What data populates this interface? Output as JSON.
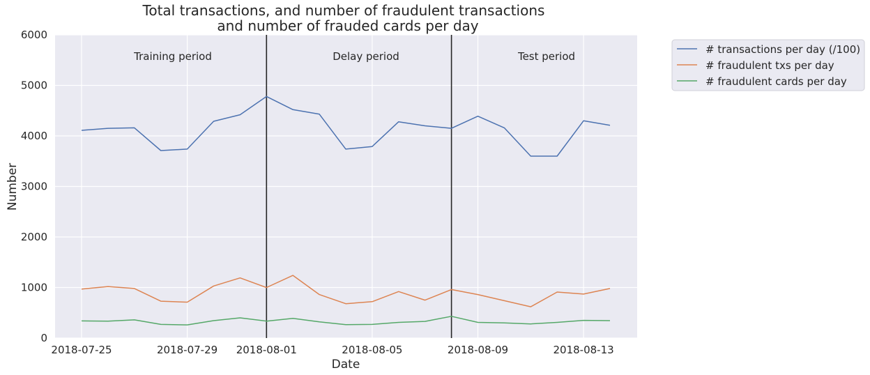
{
  "chart_data": {
    "type": "line",
    "title_line1": "Total transactions, and number of fraudulent transactions",
    "title_line2": "and number of frauded cards per day",
    "xlabel": "Date",
    "ylabel": "Number",
    "ylim": [
      0,
      6000
    ],
    "yticks": [
      "0",
      "1000",
      "2000",
      "3000",
      "4000",
      "5000",
      "6000"
    ],
    "xtick_labels": [
      "2018-07-25",
      "2018-07-29",
      "2018-08-01",
      "2018-08-05",
      "2018-08-09",
      "2018-08-13"
    ],
    "xtick_positions": [
      0,
      4,
      7,
      11,
      15,
      19
    ],
    "x": [
      "2018-07-25",
      "2018-07-26",
      "2018-07-27",
      "2018-07-28",
      "2018-07-29",
      "2018-07-30",
      "2018-07-31",
      "2018-08-01",
      "2018-08-02",
      "2018-08-03",
      "2018-08-04",
      "2018-08-05",
      "2018-08-06",
      "2018-08-07",
      "2018-08-08",
      "2018-08-09",
      "2018-08-10",
      "2018-08-11",
      "2018-08-12",
      "2018-08-13",
      "2018-08-14"
    ],
    "series": [
      {
        "name": "# transactions per day (/100)",
        "color": "#4c72b0",
        "values": [
          4110,
          4150,
          4160,
          3710,
          3740,
          4290,
          4420,
          4780,
          4520,
          4430,
          3740,
          3790,
          4280,
          4200,
          4150,
          4390,
          4160,
          3600,
          3600,
          4300,
          4210
        ]
      },
      {
        "name": "# fraudulent txs per day",
        "color": "#dd8452",
        "values": [
          970,
          1020,
          980,
          730,
          710,
          1030,
          1190,
          1000,
          1240,
          860,
          680,
          720,
          920,
          750,
          960,
          860,
          740,
          620,
          910,
          870,
          980
        ]
      },
      {
        "name": "# fraudulent cards per day",
        "color": "#55a868",
        "values": [
          340,
          335,
          360,
          270,
          260,
          345,
          400,
          335,
          390,
          320,
          265,
          270,
          310,
          330,
          430,
          310,
          300,
          280,
          310,
          350,
          345
        ]
      }
    ],
    "vlines": [
      "2018-08-01",
      "2018-08-08"
    ],
    "annotations": [
      "Training period",
      "Delay period",
      "Test period"
    ],
    "grid": true,
    "legend_position": "outside-top-right",
    "background": "#eaeaf2"
  }
}
